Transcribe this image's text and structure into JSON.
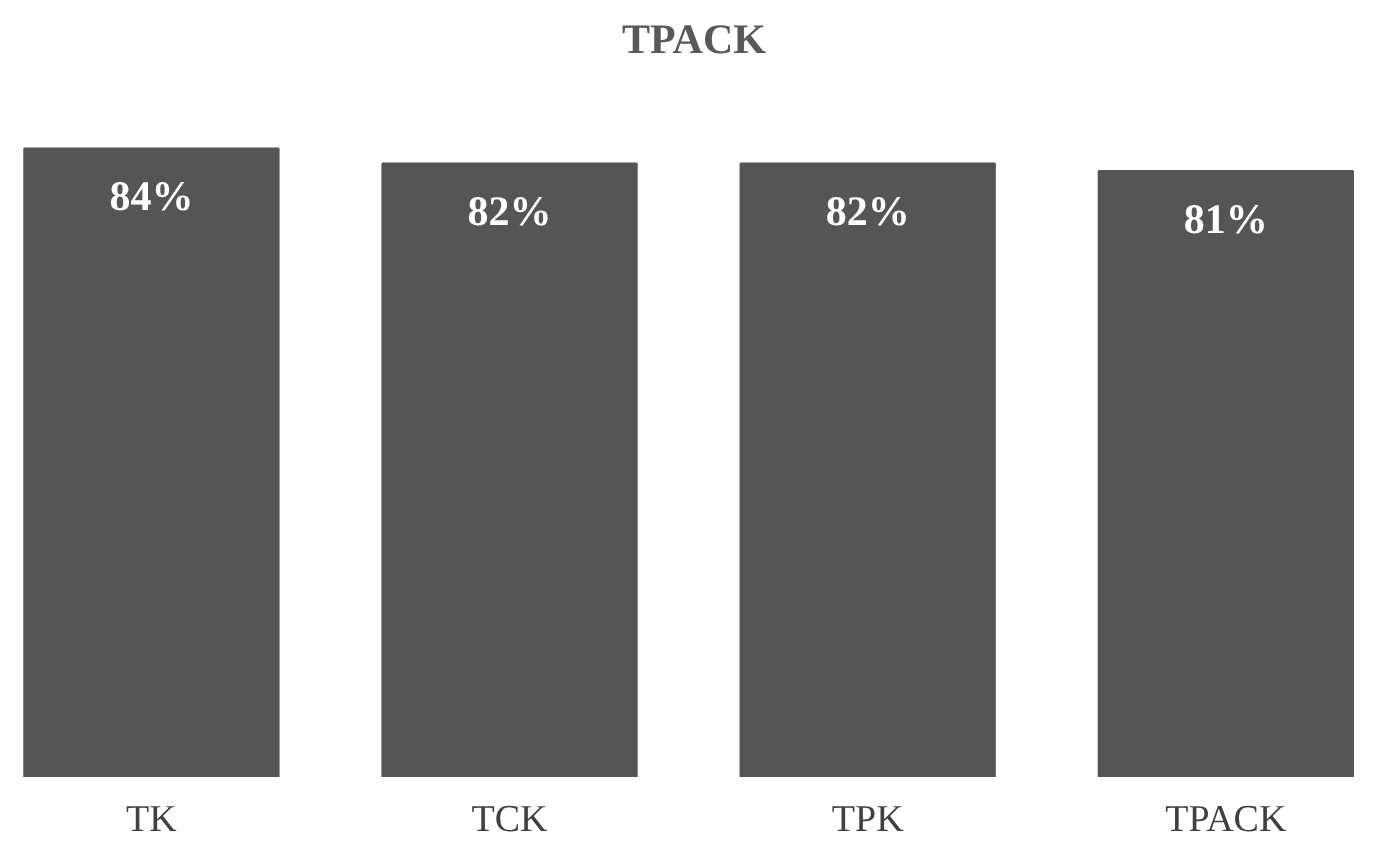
{
  "chart_data": {
    "type": "bar",
    "title": "TPACK",
    "categories": [
      "TK",
      "TCK",
      "TPK",
      "TPACK"
    ],
    "values": [
      84,
      82,
      82,
      81
    ],
    "value_labels": [
      "84%",
      "82%",
      "82%",
      "81%"
    ],
    "color": "#555555"
  }
}
